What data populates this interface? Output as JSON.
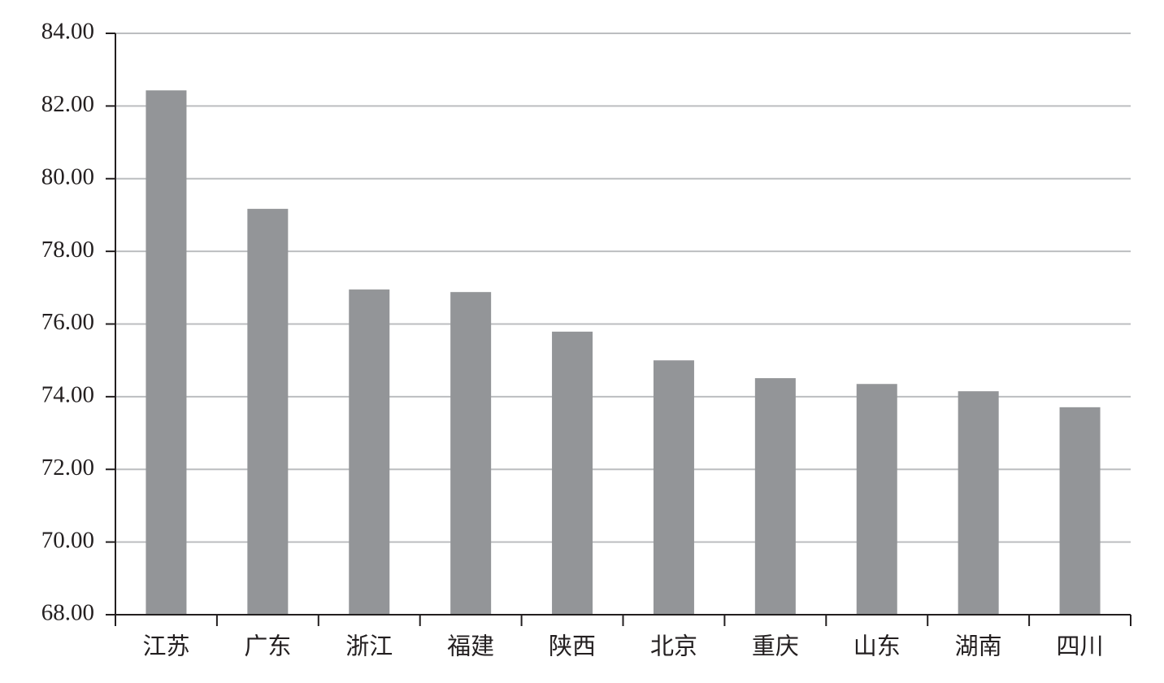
{
  "chart_data": {
    "type": "bar",
    "categories": [
      "江苏",
      "广东",
      "浙江",
      "福建",
      "陕西",
      "北京",
      "重庆",
      "山东",
      "湖南",
      "四川"
    ],
    "values": [
      82.43,
      79.17,
      76.95,
      76.88,
      75.79,
      75.0,
      74.51,
      74.35,
      74.15,
      73.71
    ],
    "color": "#939598",
    "ylim": [
      68,
      84
    ],
    "yticks": [
      {
        "value": 68,
        "label": "68.00"
      },
      {
        "value": 70,
        "label": "70.00"
      },
      {
        "value": 72,
        "label": "72.00"
      },
      {
        "value": 74,
        "label": "74.00"
      },
      {
        "value": 76,
        "label": "76.00"
      },
      {
        "value": 78,
        "label": "78.00"
      },
      {
        "value": 80,
        "label": "80.00"
      },
      {
        "value": 82,
        "label": "82.00"
      },
      {
        "value": 84,
        "label": "84.00"
      }
    ],
    "grid": true
  }
}
